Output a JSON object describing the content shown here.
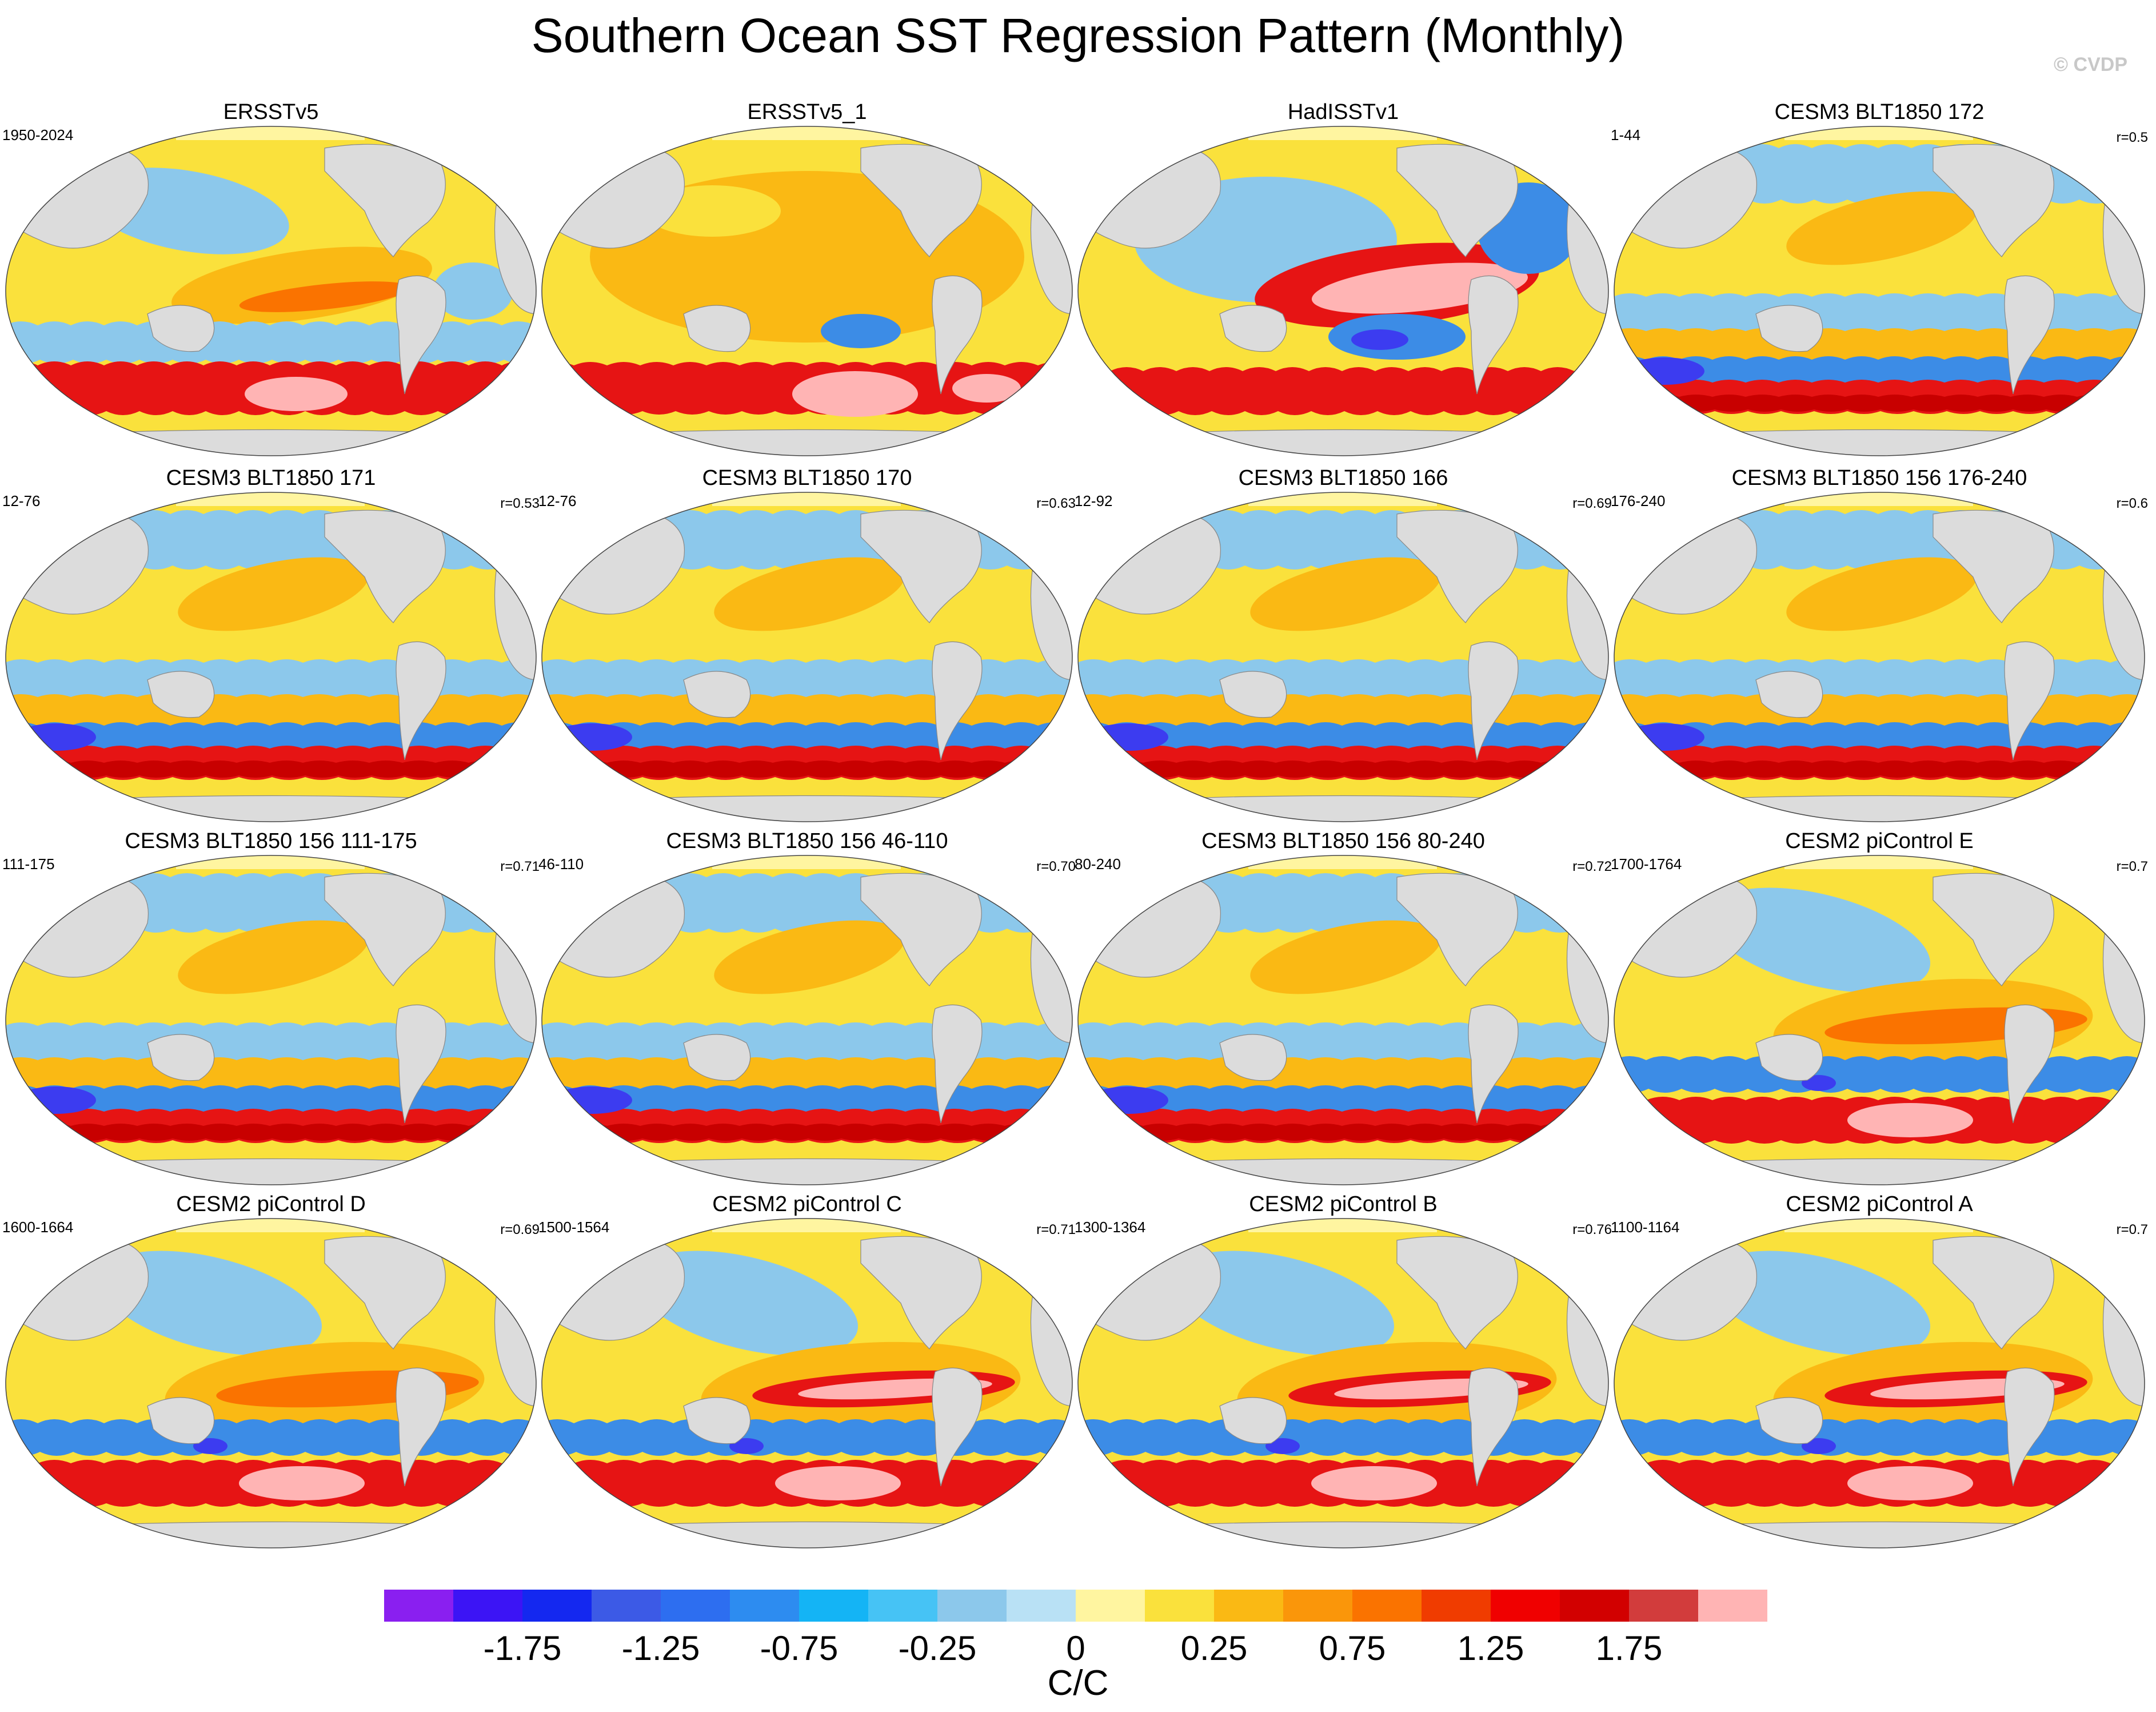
{
  "title": "Southern Ocean SST Regression Pattern (Monthly)",
  "watermark": "© CVDP",
  "panels": [
    {
      "title": "ERSSTv5",
      "left": "1950-2024",
      "right": "",
      "style": "dipole"
    },
    {
      "title": "ERSSTv5_1",
      "left": "",
      "right": "",
      "style": "warm"
    },
    {
      "title": "HadISSTv1",
      "left": "",
      "right": "",
      "style": "strongpink"
    },
    {
      "title": "CESM3 BLT1850 172",
      "left": "1-44",
      "right": "r=0.5",
      "style": "banded"
    },
    {
      "title": "CESM3 BLT1850 171",
      "left": "12-76",
      "right": "r=0.53",
      "style": "banded"
    },
    {
      "title": "CESM3 BLT1850 170",
      "left": "12-76",
      "right": "r=0.63",
      "style": "banded"
    },
    {
      "title": "CESM3 BLT1850 166",
      "left": "12-92",
      "right": "r=0.69",
      "style": "banded"
    },
    {
      "title": "CESM3 BLT1850 156 176-240",
      "left": "176-240",
      "right": "r=0.6",
      "style": "banded"
    },
    {
      "title": "CESM3 BLT1850 156 111-175",
      "left": "111-175",
      "right": "r=0.71",
      "style": "banded"
    },
    {
      "title": "CESM3 BLT1850 156 46-110",
      "left": "46-110",
      "right": "r=0.70",
      "style": "banded"
    },
    {
      "title": "CESM3 BLT1850 156 80-240",
      "left": "80-240",
      "right": "r=0.72",
      "style": "banded"
    },
    {
      "title": "CESM2 piControl E",
      "left": "1700-1764",
      "right": "r=0.7",
      "style": "tongue"
    },
    {
      "title": "CESM2 piControl D",
      "left": "1600-1664",
      "right": "r=0.69",
      "style": "tongue"
    },
    {
      "title": "CESM2 piControl C",
      "left": "1500-1564",
      "right": "r=0.71",
      "style": "strongtongue"
    },
    {
      "title": "CESM2 piControl B",
      "left": "1300-1364",
      "right": "r=0.76",
      "style": "strongtongue"
    },
    {
      "title": "CESM2 piControl A",
      "left": "1100-1164",
      "right": "r=0.7",
      "style": "strongtongue"
    }
  ],
  "colorbar": {
    "units": "C/C",
    "labels": [
      "-1.75",
      "-1.25",
      "-0.75",
      "-0.25",
      "0",
      "0.25",
      "0.75",
      "1.25",
      "1.75"
    ],
    "colors": [
      "#8a1ff0",
      "#3c14f5",
      "#1428f0",
      "#3c5ae6",
      "#2d6ef0",
      "#2d8cf0",
      "#14b4f5",
      "#46c3f5",
      "#8cc8eb",
      "#b9e1f5",
      "#fff5a0",
      "#fae13c",
      "#fab914",
      "#fa960a",
      "#fa7300",
      "#f03c00",
      "#f00000",
      "#d20000",
      "#d23c3c",
      "#ffb4b4"
    ]
  },
  "map_colors": {
    "land": "#dcdcdc",
    "ocean_neutral": "#fff5a0",
    "lightblue": "#8cc8eb",
    "blue": "#3c8ce6",
    "deepblue": "#3c3cf0",
    "yellow": "#fae13c",
    "orange": "#fab914",
    "darkorange": "#fa7300",
    "red": "#e61414",
    "darkred": "#c80000",
    "pink": "#ffb4b4"
  }
}
